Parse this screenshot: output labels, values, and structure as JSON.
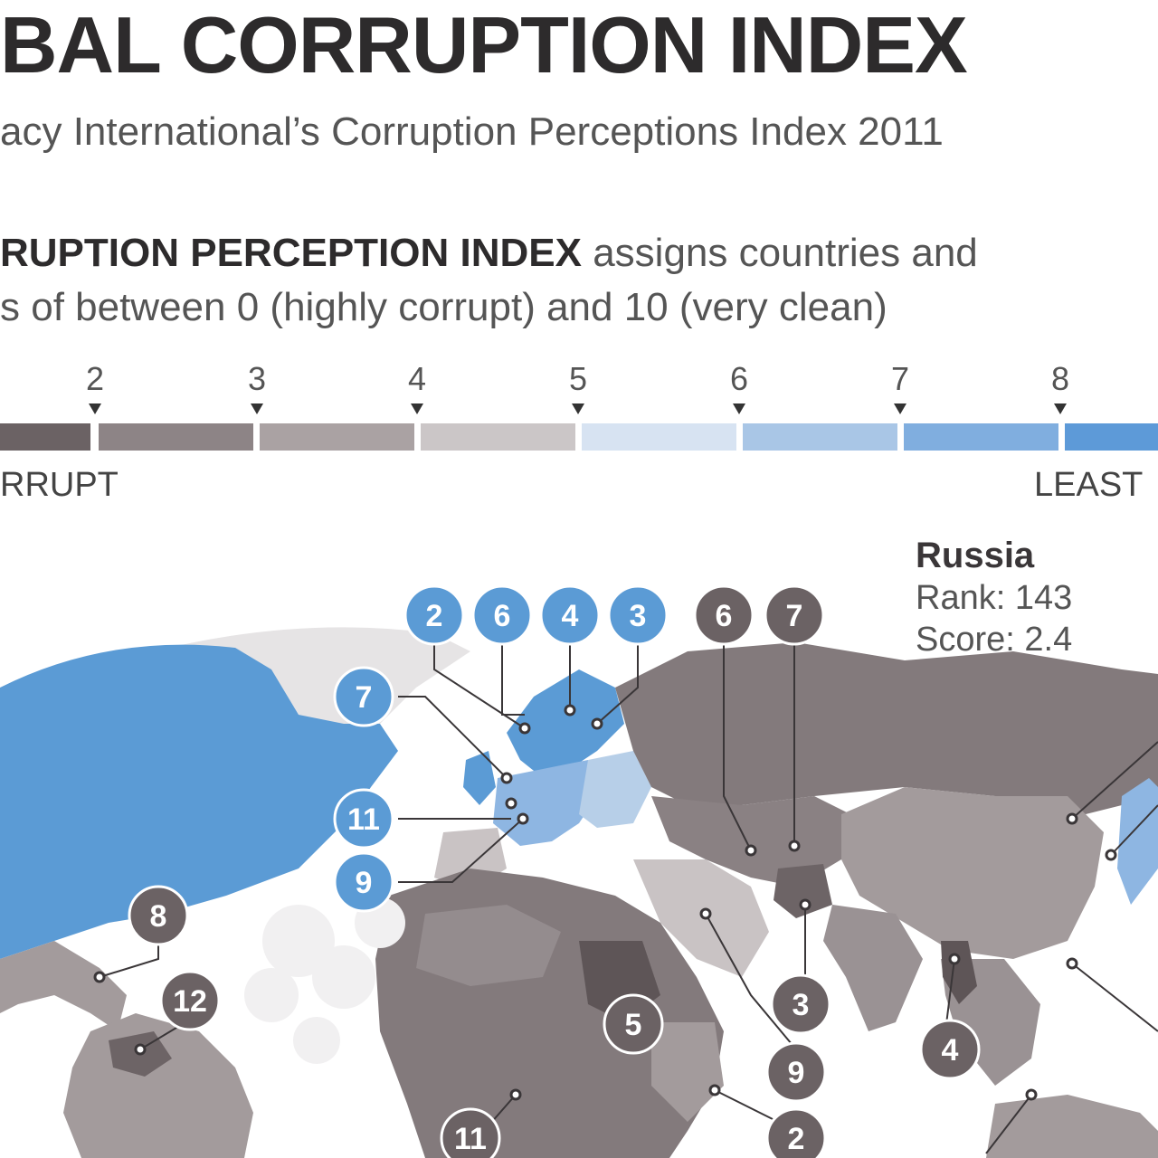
{
  "header": {
    "title": "BAL CORRUPTION INDEX",
    "subtitle": "acy International’s Corruption Perceptions Index 2011",
    "desc_bold": "RUPTION PERCEPTION INDEX",
    "desc_rest": " assigns countries and",
    "desc_line2": "s of between 0 (highly corrupt) and 10 (very clean)"
  },
  "scale": {
    "ticks": [
      "2",
      "3",
      "4",
      "5",
      "6",
      "7",
      "8"
    ],
    "left_label": "RRUPT",
    "right_label": "LEAST",
    "colors": [
      "#6b6264",
      "#8d8486",
      "#aaa2a3",
      "#cbc6c7",
      "#d7e3f2",
      "#a9c6e6",
      "#80aedf",
      "#5d9ad8"
    ]
  },
  "callout": {
    "country": "Russia",
    "rank": "Rank: 143",
    "score": "Score: 2.4"
  },
  "map": {
    "colors": {
      "clean": "#5b9bd5",
      "light_clean": "#b7cfe8",
      "corrupt": "#837a7c",
      "dark_corrupt": "#5e5557",
      "mid": "#a39b9c",
      "ocean": "#ffffff"
    },
    "blue_badges": [
      "2",
      "6",
      "4",
      "3",
      "7",
      "11",
      "9"
    ],
    "grey_badges": [
      "6",
      "7",
      "8",
      "12",
      "5",
      "3",
      "9",
      "4",
      "11",
      "2"
    ]
  }
}
